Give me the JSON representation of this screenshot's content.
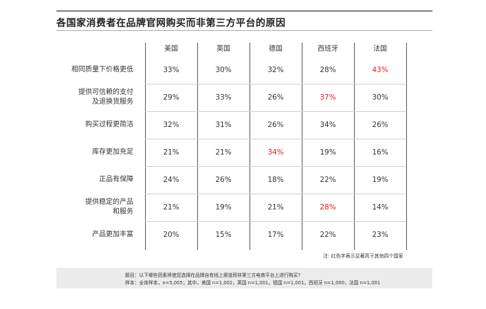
{
  "chart_data": {
    "type": "table",
    "title": "各国家消费者在品牌官网购买而非第三方平台的原因",
    "columns": [
      "美国",
      "英国",
      "德国",
      "西班牙",
      "法国"
    ],
    "rows": [
      {
        "label": "相同质量下价格更低",
        "values": [
          "33%",
          "30%",
          "32%",
          "28%",
          "43%"
        ],
        "highlight": [
          false,
          false,
          false,
          false,
          true
        ]
      },
      {
        "label": "提供可信赖的支付\n及退换货服务",
        "values": [
          "29%",
          "33%",
          "26%",
          "37%",
          "30%"
        ],
        "highlight": [
          false,
          false,
          false,
          true,
          false
        ]
      },
      {
        "label": "购买过程更简洁",
        "values": [
          "32%",
          "31%",
          "26%",
          "34%",
          "26%"
        ],
        "highlight": [
          false,
          false,
          false,
          false,
          false
        ]
      },
      {
        "label": "库存更加充足",
        "values": [
          "21%",
          "21%",
          "34%",
          "19%",
          "16%"
        ],
        "highlight": [
          false,
          false,
          true,
          false,
          false
        ]
      },
      {
        "label": "正品有保障",
        "values": [
          "24%",
          "26%",
          "18%",
          "22%",
          "19%"
        ],
        "highlight": [
          false,
          false,
          false,
          false,
          false
        ]
      },
      {
        "label": "提供稳定的产品\n和服务",
        "values": [
          "21%",
          "19%",
          "21%",
          "28%",
          "14%"
        ],
        "highlight": [
          false,
          false,
          false,
          true,
          false
        ]
      },
      {
        "label": "产品更加丰富",
        "values": [
          "20%",
          "15%",
          "17%",
          "22%",
          "23%"
        ],
        "highlight": [
          false,
          false,
          false,
          false,
          false
        ]
      }
    ]
  },
  "note": "注: 红色字表示显著高于其他四个国家",
  "footer": {
    "question": "题目：以下哪些因素将使您选择在品牌自有线上渠道而非第三方电商平台上进行购买?",
    "sample": "样本：全体样本，n=5,005；其中，美国 n=1,002，英国 n=1,001，德国 n=1,001，西班牙 n=1,000，法国 n=1,001"
  },
  "colors": {
    "highlight": "#e02020",
    "text": "#333333",
    "footer_bg": "#ececec"
  }
}
